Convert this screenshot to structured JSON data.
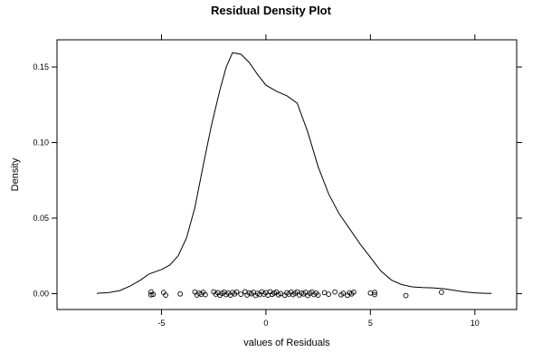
{
  "chart_data": {
    "type": "line",
    "title": "Residual Density Plot",
    "xlabel": "values of Residuals",
    "ylabel": "Density",
    "xlim": [
      -10.0,
      12.0
    ],
    "ylim": [
      -0.0105,
      0.168
    ],
    "x_ticks": [
      -5,
      0,
      5,
      10
    ],
    "x_tick_labels": [
      "-5",
      "0",
      "5",
      "10"
    ],
    "y_ticks": [
      0.0,
      0.05,
      0.1,
      0.15
    ],
    "y_tick_labels": [
      "0.00",
      "0.05",
      "0.10",
      "0.15"
    ],
    "grid": false,
    "series": [
      {
        "type": "line",
        "x": [
          -8.1,
          -7.5,
          -7.0,
          -6.5,
          -6.0,
          -5.6,
          -5.0,
          -4.6,
          -4.2,
          -3.8,
          -3.4,
          -3.0,
          -2.6,
          -2.2,
          -1.9,
          -1.6,
          -1.2,
          -0.8,
          -0.4,
          0.0,
          0.5,
          1.0,
          1.5,
          2.0,
          2.5,
          3.0,
          3.5,
          4.0,
          4.5,
          5.0,
          5.5,
          6.0,
          6.5,
          7.0,
          7.5,
          8.0,
          8.5,
          9.0,
          9.5,
          10.0,
          10.5,
          10.8
        ],
        "y": [
          0.0002,
          0.0007,
          0.002,
          0.005,
          0.009,
          0.013,
          0.016,
          0.019,
          0.025,
          0.037,
          0.057,
          0.085,
          0.112,
          0.135,
          0.15,
          0.1595,
          0.1585,
          0.153,
          0.145,
          0.138,
          0.134,
          0.131,
          0.126,
          0.107,
          0.084,
          0.066,
          0.053,
          0.043,
          0.033,
          0.024,
          0.015,
          0.009,
          0.006,
          0.0045,
          0.004,
          0.0038,
          0.0033,
          0.0022,
          0.0012,
          0.0005,
          0.0002,
          0.0001
        ]
      },
      {
        "type": "scatter",
        "name": "rug",
        "points": [
          [
            -5.5,
            -0.0008
          ],
          [
            -5.5,
            0.0012
          ],
          [
            -5.4,
            -0.0005
          ],
          [
            -4.9,
            0.0008
          ],
          [
            -4.8,
            -0.001
          ],
          [
            -4.1,
            -0.0002
          ],
          [
            -3.4,
            0.0011
          ],
          [
            -3.3,
            -0.0009
          ],
          [
            -3.2,
            0.0003
          ],
          [
            -3.1,
            -0.0004
          ],
          [
            -3.0,
            0.0009
          ],
          [
            -2.9,
            -0.0007
          ],
          [
            -2.5,
            0.0012
          ],
          [
            -2.4,
            -0.0003
          ],
          [
            -2.3,
            0.0007
          ],
          [
            -2.2,
            -0.0011
          ],
          [
            -2.1,
            0.0002
          ],
          [
            -2.0,
            0.001
          ],
          [
            -1.9,
            -0.0006
          ],
          [
            -1.8,
            0.0004
          ],
          [
            -1.7,
            -0.001
          ],
          [
            -1.6,
            0.0008
          ],
          [
            -1.5,
            -0.0002
          ],
          [
            -1.4,
            0.0011
          ],
          [
            -1.2,
            -0.0004
          ],
          [
            -1.0,
            0.0013
          ],
          [
            -0.9,
            -0.0009
          ],
          [
            -0.8,
            0.0005
          ],
          [
            -0.7,
            -0.0001
          ],
          [
            -0.6,
            0.0009
          ],
          [
            -0.5,
            -0.0012
          ],
          [
            -0.4,
            0.0002
          ],
          [
            -0.3,
            -0.0006
          ],
          [
            -0.2,
            0.0012
          ],
          [
            -0.1,
            -0.0003
          ],
          [
            0.0,
            0.0007
          ],
          [
            0.1,
            -0.001
          ],
          [
            0.2,
            0.0013
          ],
          [
            0.3,
            -0.0005
          ],
          [
            0.4,
            0.0004
          ],
          [
            0.5,
            0.0011
          ],
          [
            0.6,
            -0.0008
          ],
          [
            0.7,
            0.0001
          ],
          [
            0.9,
            -0.0011
          ],
          [
            1.0,
            0.0006
          ],
          [
            1.1,
            -0.0003
          ],
          [
            1.2,
            0.001
          ],
          [
            1.3,
            -0.0007
          ],
          [
            1.4,
            0.0003
          ],
          [
            1.5,
            0.0012
          ],
          [
            1.6,
            -0.0009
          ],
          [
            1.7,
            0.0005
          ],
          [
            1.8,
            -0.0002
          ],
          [
            1.9,
            0.0009
          ],
          [
            2.0,
            -0.0012
          ],
          [
            2.1,
            0.0002
          ],
          [
            2.2,
            0.0011
          ],
          [
            2.3,
            -0.0006
          ],
          [
            2.4,
            0.0004
          ],
          [
            2.5,
            -0.001
          ],
          [
            2.8,
            0.0007
          ],
          [
            3.0,
            -0.0004
          ],
          [
            3.3,
            0.0011
          ],
          [
            3.6,
            -0.0008
          ],
          [
            3.7,
            0.0003
          ],
          [
            3.9,
            -0.0011
          ],
          [
            4.0,
            0.0006
          ],
          [
            4.1,
            -0.0002
          ],
          [
            4.2,
            0.001
          ],
          [
            5.0,
            0.0004
          ],
          [
            5.2,
            0.0009
          ],
          [
            5.2,
            -0.0006
          ],
          [
            6.7,
            -0.0013
          ],
          [
            8.4,
            0.0009
          ]
        ]
      }
    ]
  }
}
